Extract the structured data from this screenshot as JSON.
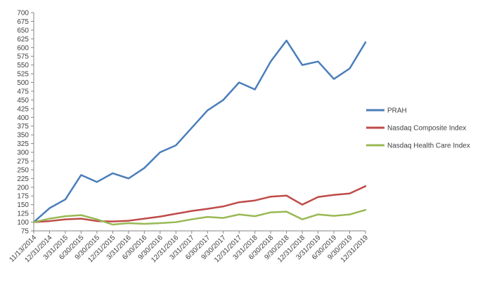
{
  "chart_data": {
    "type": "line",
    "title": "",
    "xlabel": "",
    "ylabel": "",
    "ylim": [
      75,
      700
    ],
    "ytick_step": 25,
    "grid": false,
    "legend_position": "right",
    "x": [
      "11/13/2014",
      "12/31/2014",
      "3/31/2015",
      "6/30/2015",
      "9/30/2015",
      "12/31/2015",
      "3/31/2016",
      "6/30/2016",
      "9/30/2016",
      "12/31/2016",
      "3/31/2017",
      "6/30/2017",
      "9/30/2017",
      "12/31/2017",
      "3/31/2018",
      "6/30/2018",
      "9/30/2018",
      "12/31/2018",
      "3/31/2019",
      "6/30/2019",
      "9/30/2019",
      "12/31/2019"
    ],
    "series": [
      {
        "name": "PRAH",
        "color": "#4a7ebb",
        "values": [
          100,
          140,
          165,
          235,
          215,
          240,
          225,
          255,
          300,
          320,
          370,
          420,
          450,
          500,
          480,
          560,
          620,
          550,
          560,
          510,
          540,
          615
        ]
      },
      {
        "name": "Nasdaq Composite Index",
        "color": "#be4b48",
        "values": [
          100,
          103,
          108,
          110,
          103,
          102,
          104,
          110,
          116,
          124,
          132,
          138,
          145,
          157,
          162,
          173,
          176,
          150,
          172,
          178,
          182,
          203
        ]
      },
      {
        "name": "Nasdaq Health Care Index",
        "color": "#98b954",
        "values": [
          100,
          110,
          117,
          120,
          108,
          93,
          97,
          95,
          97,
          100,
          108,
          115,
          112,
          122,
          117,
          128,
          130,
          108,
          122,
          118,
          122,
          135
        ]
      }
    ]
  }
}
